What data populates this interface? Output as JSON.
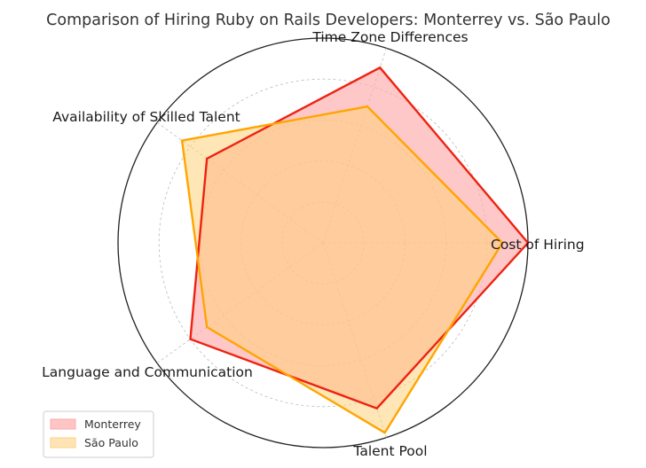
{
  "chart_data": {
    "type": "radar",
    "title": "Comparison of Hiring Ruby on Rails Developers: Monterrey vs. São Paulo",
    "axes": [
      "Cost of Hiring",
      "Time Zone Differences",
      "Availability of Skilled Talent",
      "Language and Communication",
      "Talent Pool"
    ],
    "rlim": [
      0,
      10
    ],
    "grid": true,
    "legend_position": "bottom-left",
    "series": [
      {
        "name": "Monterrey",
        "values": [
          10,
          9,
          7,
          8,
          8.5
        ],
        "line_color": "#ee2211",
        "fill_color": "#ffaaaa"
      },
      {
        "name": "São Paulo",
        "values": [
          8.75,
          7,
          8.5,
          7,
          9.75
        ],
        "line_color": "#ffa500",
        "fill_color": "#ffd27a"
      }
    ]
  }
}
